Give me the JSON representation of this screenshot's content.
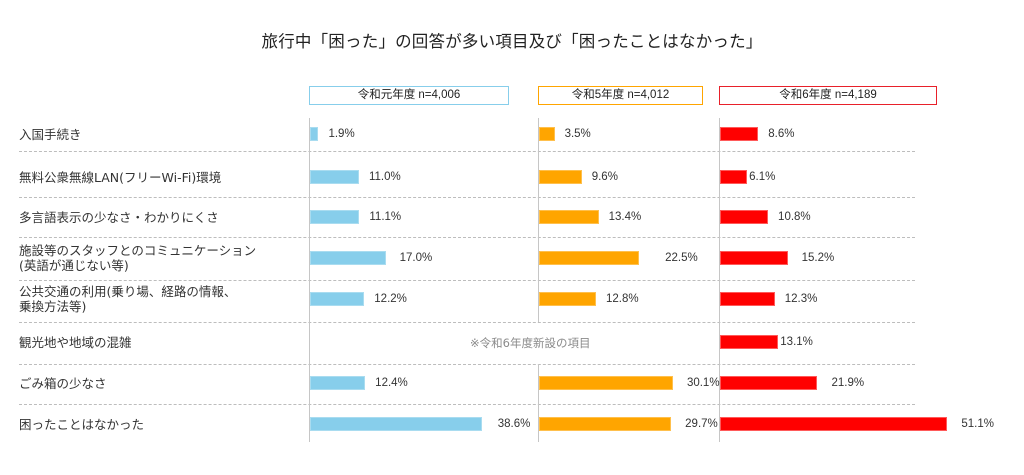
{
  "chart_data": {
    "type": "bar",
    "orientation": "horizontal",
    "title": "旅行中「困った」の回答が多い項目及び「困ったことはなかった」",
    "xlabel": "",
    "ylabel": "",
    "unit": "%",
    "xlim": [
      0,
      55
    ],
    "grid": false,
    "categories": [
      "入国手続き",
      "無料公衆無線LAN(フリーWi-Fi)環境",
      "多言語表示の少なさ・わかりにくさ",
      "施設等のスタッフとのコミュニケーション\n(英語が通じない等)",
      "公共交通の利用(乗り場、経路の情報、\n乗換方法等)",
      "観光地や地域の混雑",
      "ごみ箱の少なさ",
      "困ったことはなかった"
    ],
    "series": [
      {
        "name": "令和元年度 n=4,006",
        "color": "#87CEEB",
        "values": [
          1.9,
          11.0,
          11.1,
          17.0,
          12.2,
          null,
          12.4,
          38.6
        ],
        "labels": [
          "1.9%",
          "11.0%",
          "11.1%",
          "17.0%",
          "12.2%",
          null,
          "12.4%",
          "38.6%"
        ]
      },
      {
        "name": "令和5年度 n=4,012",
        "color": "#FFA500",
        "values": [
          3.5,
          9.6,
          13.4,
          22.5,
          12.8,
          null,
          30.1,
          29.7
        ],
        "labels": [
          "3.5%",
          "9.6%",
          "13.4%",
          "22.5%",
          "12.8%",
          null,
          "30.1%",
          "29.7%"
        ]
      },
      {
        "name": "令和6年度 n=4,189",
        "color": "#FF0000",
        "values": [
          8.6,
          6.1,
          10.8,
          15.2,
          12.3,
          13.1,
          21.9,
          51.1
        ],
        "labels": [
          "8.6%",
          "6.1%",
          "10.8%",
          "15.2%",
          "12.3%",
          "13.1%",
          "21.9%",
          "51.1%"
        ]
      }
    ],
    "legend": {
      "placement": "top",
      "border_colors": [
        "#87CEEB",
        "#FFA500",
        "#E8202A"
      ]
    },
    "annotations": [
      "※令和6年度新設の項目"
    ]
  }
}
